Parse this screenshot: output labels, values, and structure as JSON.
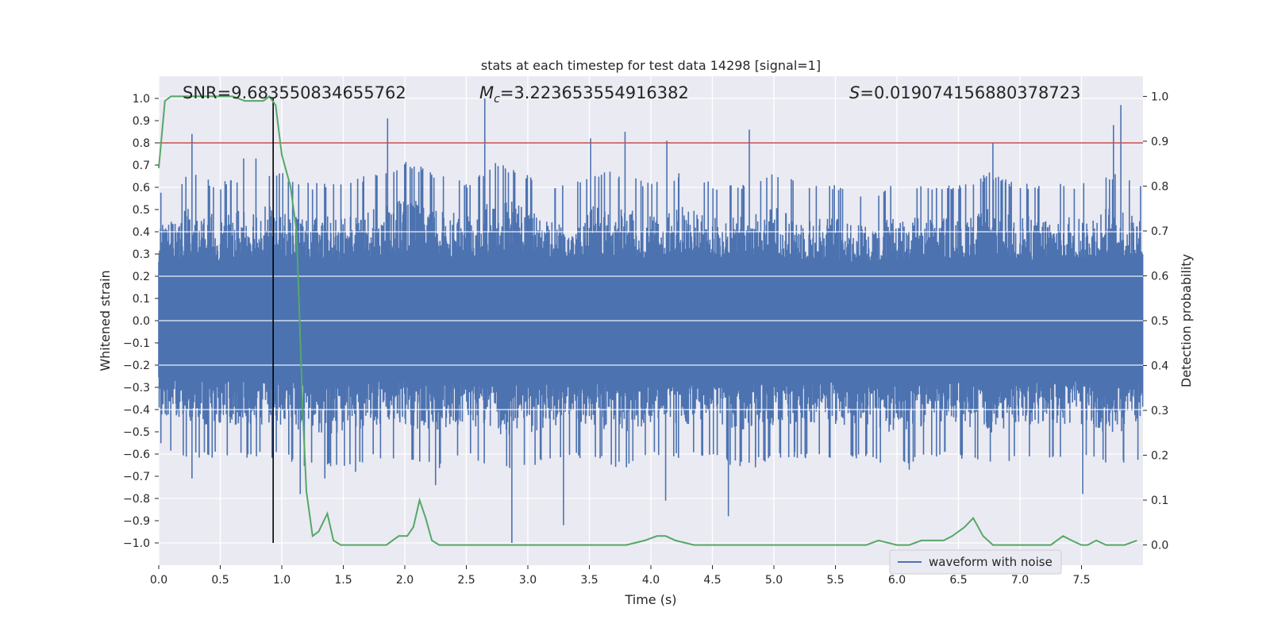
{
  "chart_data": {
    "type": "line",
    "title": "stats at each timestep for test data 14298 [signal=1]",
    "xlabel": "Time (s)",
    "ylabel": "Whitened strain",
    "y2label": "Detection probability",
    "xlim": [
      0.0,
      8.0
    ],
    "ylim": [
      -1.1,
      1.1
    ],
    "y2lim": [
      -0.045,
      1.045
    ],
    "xticks": [
      "0.0",
      "0.5",
      "1.0",
      "1.5",
      "2.0",
      "2.5",
      "3.0",
      "3.5",
      "4.0",
      "4.5",
      "5.0",
      "5.5",
      "6.0",
      "6.5",
      "7.0",
      "7.5"
    ],
    "yticks": [
      "1.0",
      "0.9",
      "0.8",
      "0.7",
      "0.6",
      "0.5",
      "0.4",
      "0.3",
      "0.2",
      "0.1",
      "0.0",
      "−0.1",
      "−0.2",
      "−0.3",
      "−0.4",
      "−0.5",
      "−0.6",
      "−0.7",
      "−0.8",
      "−0.9",
      "−1.0"
    ],
    "y2ticks": [
      "1.0",
      "0.9",
      "0.8",
      "0.7",
      "0.6",
      "0.5",
      "0.4",
      "0.3",
      "0.2",
      "0.1",
      "0.0"
    ],
    "grid": true,
    "legend": {
      "entries": [
        "waveform with noise"
      ],
      "placement": "lower-right"
    },
    "annotations": {
      "snr": "SNR=9.683550834655762",
      "mc_symbol": "M",
      "mc_sub": "c",
      "mc_value": "=3.223653554916382",
      "s_symbol": "S",
      "s_value": "=0.019074156880378723"
    },
    "threshold": {
      "y": 0.8,
      "color": "#c44e52"
    },
    "vline": {
      "x": 0.93,
      "y_range": [
        -1.0,
        1.0
      ],
      "color": "#000000"
    },
    "series": [
      {
        "name": "waveform with noise",
        "axis": "left",
        "color": "#4c72b0",
        "envelope": {
          "x": [
            0.0,
            0.25,
            0.5,
            0.75,
            1.0,
            1.25,
            1.5,
            1.75,
            2.0,
            2.25,
            2.5,
            2.75,
            3.0,
            3.25,
            3.5,
            3.75,
            4.0,
            4.25,
            4.5,
            4.75,
            5.0,
            5.25,
            5.5,
            5.75,
            6.0,
            6.25,
            6.5,
            6.75,
            7.0,
            7.25,
            7.5,
            7.75,
            8.0
          ],
          "upper": [
            0.45,
            0.55,
            0.5,
            0.55,
            0.55,
            0.5,
            0.5,
            0.55,
            0.6,
            0.55,
            0.5,
            0.6,
            0.55,
            0.5,
            0.55,
            0.55,
            0.5,
            0.55,
            0.5,
            0.5,
            0.55,
            0.5,
            0.5,
            0.45,
            0.5,
            0.5,
            0.5,
            0.55,
            0.5,
            0.5,
            0.5,
            0.55,
            0.5
          ],
          "lower": [
            -0.45,
            -0.5,
            -0.5,
            -0.5,
            -0.5,
            -0.55,
            -0.55,
            -0.5,
            -0.5,
            -0.55,
            -0.5,
            -0.55,
            -0.55,
            -0.5,
            -0.5,
            -0.55,
            -0.5,
            -0.5,
            -0.5,
            -0.55,
            -0.5,
            -0.5,
            -0.5,
            -0.5,
            -0.55,
            -0.5,
            -0.5,
            -0.55,
            -0.5,
            -0.5,
            -0.5,
            -0.55,
            -0.5
          ]
        },
        "peaks": [
          {
            "x": 0.27,
            "y": 0.84
          },
          {
            "x": 0.69,
            "y": 0.73
          },
          {
            "x": 0.79,
            "y": 0.73
          },
          {
            "x": 1.86,
            "y": 0.91
          },
          {
            "x": 2.65,
            "y": 1.0
          },
          {
            "x": 3.51,
            "y": 0.82
          },
          {
            "x": 3.79,
            "y": 0.85
          },
          {
            "x": 4.13,
            "y": 0.81
          },
          {
            "x": 4.8,
            "y": 0.86
          },
          {
            "x": 6.78,
            "y": 0.8
          },
          {
            "x": 7.76,
            "y": 0.88
          },
          {
            "x": 7.82,
            "y": 0.97
          },
          {
            "x": 0.27,
            "y": -0.71
          },
          {
            "x": 1.15,
            "y": -0.78
          },
          {
            "x": 1.35,
            "y": -0.71
          },
          {
            "x": 2.87,
            "y": -1.0
          },
          {
            "x": 3.29,
            "y": -0.92
          },
          {
            "x": 4.12,
            "y": -0.81
          },
          {
            "x": 4.63,
            "y": -0.88
          },
          {
            "x": 7.51,
            "y": -0.78
          },
          {
            "x": 1.6,
            "y": -0.68
          },
          {
            "x": 2.25,
            "y": -0.74
          },
          {
            "x": 4.85,
            "y": -0.66
          },
          {
            "x": 6.1,
            "y": -0.67
          }
        ]
      },
      {
        "name": "",
        "axis": "right",
        "color": "#55a868",
        "x": [
          0.0,
          0.05,
          0.1,
          0.2,
          0.3,
          0.4,
          0.5,
          0.6,
          0.7,
          0.75,
          0.8,
          0.85,
          0.9,
          0.95,
          1.0,
          1.07,
          1.12,
          1.17,
          1.2,
          1.25,
          1.3,
          1.37,
          1.42,
          1.48,
          1.55,
          1.65,
          1.75,
          1.85,
          1.95,
          2.02,
          2.07,
          2.12,
          2.17,
          2.22,
          2.28,
          2.35,
          2.45,
          2.55,
          2.65,
          2.8,
          3.0,
          3.2,
          3.4,
          3.6,
          3.8,
          3.95,
          4.05,
          4.12,
          4.2,
          4.35,
          4.5,
          4.65,
          4.8,
          5.0,
          5.2,
          5.4,
          5.6,
          5.75,
          5.85,
          6.0,
          6.1,
          6.2,
          6.3,
          6.38,
          6.45,
          6.55,
          6.62,
          6.7,
          6.78,
          6.9,
          7.1,
          7.25,
          7.3,
          7.35,
          7.42,
          7.5,
          7.55,
          7.62,
          7.7,
          7.85,
          7.95
        ],
        "y": [
          0.84,
          0.99,
          1.0,
          1.0,
          1.0,
          1.0,
          1.0,
          1.0,
          0.99,
          0.99,
          0.99,
          0.99,
          1.0,
          0.98,
          0.87,
          0.8,
          0.7,
          0.3,
          0.12,
          0.02,
          0.03,
          0.07,
          0.01,
          0.0,
          0.0,
          0.0,
          0.0,
          0.0,
          0.02,
          0.02,
          0.04,
          0.1,
          0.06,
          0.01,
          0.0,
          0.0,
          0.0,
          0.0,
          0.0,
          0.0,
          0.0,
          0.0,
          0.0,
          0.0,
          0.0,
          0.01,
          0.02,
          0.02,
          0.01,
          0.0,
          0.0,
          0.0,
          0.0,
          0.0,
          0.0,
          0.0,
          0.0,
          0.0,
          0.01,
          0.0,
          0.0,
          0.01,
          0.01,
          0.01,
          0.02,
          0.04,
          0.06,
          0.02,
          0.0,
          0.0,
          0.0,
          0.0,
          0.01,
          0.02,
          0.01,
          0.0,
          0.0,
          0.01,
          0.0,
          0.0,
          0.01
        ]
      }
    ]
  }
}
